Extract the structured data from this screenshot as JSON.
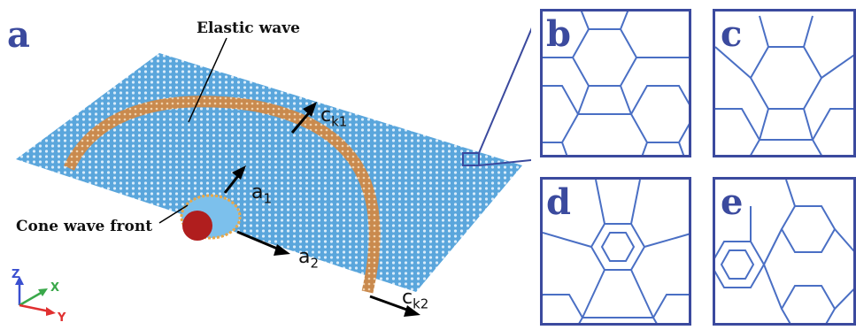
{
  "panels": {
    "a": "a",
    "b": "b",
    "c": "c",
    "d": "d",
    "e": "e"
  },
  "labels": {
    "elastic_wave": "Elastic wave",
    "cone_wave_front": "Cone wave front"
  },
  "vectors": {
    "ck1": {
      "base": "c",
      "sub": "k1"
    },
    "a1": {
      "base": "a",
      "sub": "1"
    },
    "a2": {
      "base": "a",
      "sub": "2"
    },
    "ck2": {
      "base": "c",
      "sub": "k2"
    }
  },
  "axes": {
    "z": "Z",
    "x": "X",
    "y": "Y"
  },
  "colors": {
    "sheet": "#5aa6dc",
    "wave_ring": "#c98a4e",
    "cone_front": "#e8a84a",
    "projectile": "#b01e1e",
    "lattice": "#4a6fc4",
    "inset_border": "#3b4a9e",
    "axis_z": "#3a4fd0",
    "axis_x": "#3aa84a",
    "axis_y": "#e03030"
  }
}
